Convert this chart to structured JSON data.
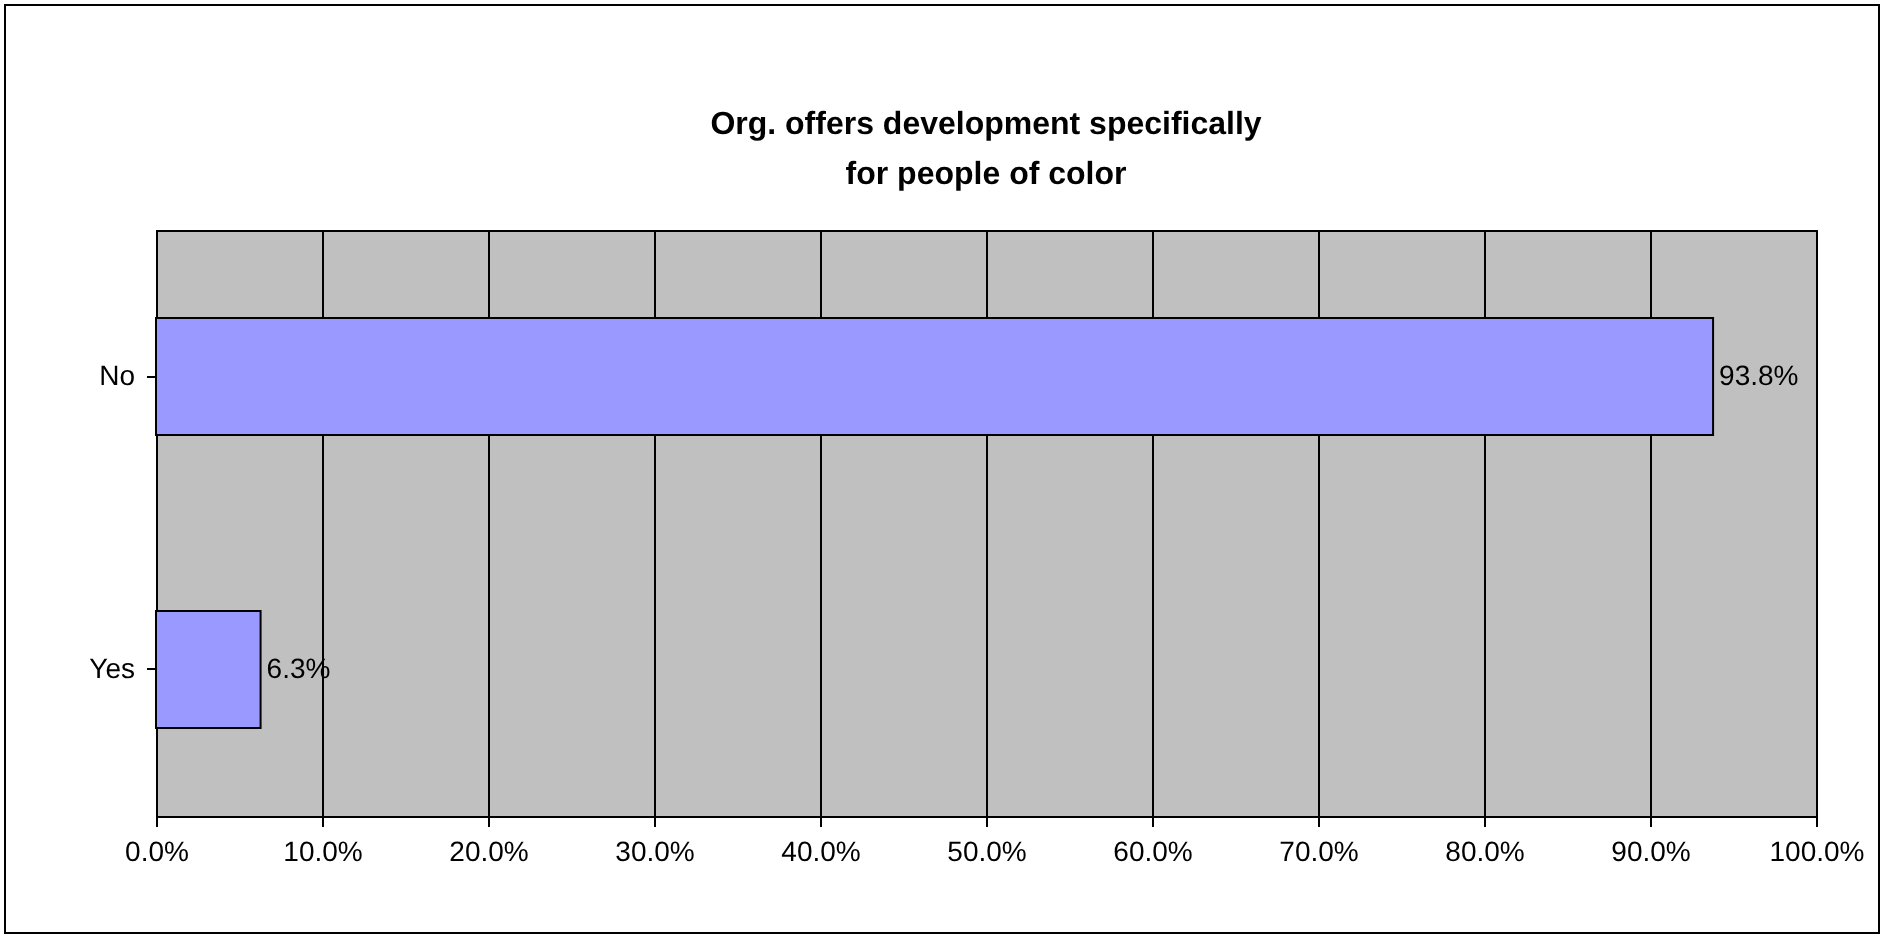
{
  "chart_data": {
    "type": "bar",
    "orientation": "horizontal",
    "title": "Org. offers development specifically\nfor people of color",
    "categories": [
      "No",
      "Yes"
    ],
    "values": [
      93.8,
      6.3
    ],
    "color": "#9999ff",
    "value_labels": [
      "93.8%",
      "6.3%"
    ],
    "xlim": [
      0,
      100
    ],
    "xticks": [
      {
        "value": 0,
        "label": "0.0%"
      },
      {
        "value": 10,
        "label": "10.0%"
      },
      {
        "value": 20,
        "label": "20.0%"
      },
      {
        "value": 30,
        "label": "30.0%"
      },
      {
        "value": 40,
        "label": "40.0%"
      },
      {
        "value": 50,
        "label": "50.0%"
      },
      {
        "value": 60,
        "label": "60.0%"
      },
      {
        "value": 70,
        "label": "70.0%"
      },
      {
        "value": 80,
        "label": "80.0%"
      },
      {
        "value": 90,
        "label": "90.0%"
      },
      {
        "value": 100,
        "label": "100.0%"
      }
    ],
    "grid": "x"
  }
}
